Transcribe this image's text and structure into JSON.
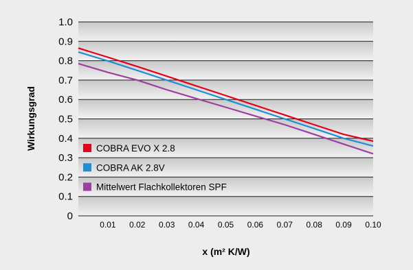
{
  "chart_data": {
    "type": "line",
    "title": "",
    "xlabel": "x (m² K/W)",
    "ylabel": "Wirkungsgrad",
    "xlim": [
      0,
      0.1
    ],
    "ylim": [
      0,
      1.0
    ],
    "x_ticks": [
      "0.01",
      "0.02",
      "0.03",
      "0.04",
      "0.05",
      "0.06",
      "0.07",
      "0.08",
      "0.09",
      "0.10"
    ],
    "y_ticks": [
      "0",
      "0.1",
      "0.2",
      "0.3",
      "0.4",
      "0.5",
      "0.6",
      "0.7",
      "0.8",
      "0.9",
      "1.0"
    ],
    "grid": "horizontal",
    "legend_position": "bottom-left",
    "colors": {
      "band_light": "#f2f2f2",
      "band_dark": "#c8c8c8",
      "grid": "#1a1a1a",
      "page_background": "#ededed",
      "plot_background": "#ffffff"
    },
    "series": [
      {
        "name": "COBRA EVO X 2.8",
        "color": "#e3001b",
        "x": [
          0,
          0.01,
          0.02,
          0.03,
          0.04,
          0.05,
          0.06,
          0.07,
          0.08,
          0.09,
          0.1
        ],
        "y": [
          0.865,
          0.818,
          0.77,
          0.72,
          0.67,
          0.62,
          0.57,
          0.52,
          0.47,
          0.42,
          0.385
        ]
      },
      {
        "name": "COBRA AK 2.8V",
        "color": "#1e8ed6",
        "x": [
          0,
          0.01,
          0.02,
          0.03,
          0.04,
          0.05,
          0.06,
          0.07,
          0.08,
          0.09,
          0.1
        ],
        "y": [
          0.845,
          0.799,
          0.75,
          0.7,
          0.65,
          0.6,
          0.55,
          0.5,
          0.45,
          0.4,
          0.36
        ]
      },
      {
        "name": "Mittelwert Flachkollektoren SPF",
        "color": "#9b3fa0",
        "x": [
          0,
          0.01,
          0.02,
          0.03,
          0.04,
          0.05,
          0.06,
          0.07,
          0.08,
          0.09,
          0.1
        ],
        "y": [
          0.785,
          0.74,
          0.7,
          0.65,
          0.605,
          0.56,
          0.515,
          0.47,
          0.42,
          0.37,
          0.32
        ]
      }
    ]
  }
}
